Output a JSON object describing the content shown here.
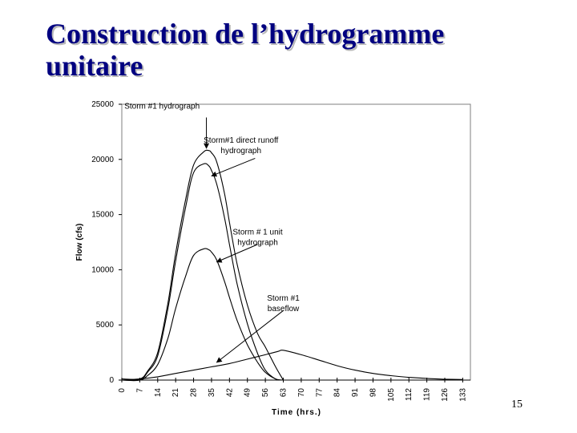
{
  "slide": {
    "title_line1": "Construction de l’hydrogramme",
    "title_line2": "unitaire",
    "page_number": "15"
  },
  "chart_data": {
    "type": "line",
    "title": "",
    "xlabel": "Time (hrs.)",
    "ylabel": "Flow (cfs)",
    "xlim": [
      0,
      136
    ],
    "ylim": [
      0,
      25000
    ],
    "x_ticks": [
      0,
      7,
      14,
      21,
      28,
      35,
      42,
      49,
      56,
      63,
      70,
      77,
      84,
      91,
      98,
      105,
      112,
      119,
      126,
      133
    ],
    "y_ticks": [
      0,
      5000,
      10000,
      15000,
      20000,
      25000
    ],
    "grid": false,
    "series": [
      {
        "key": "storm_hydrograph",
        "x": [
          0,
          7,
          10,
          14,
          18,
          21,
          25,
          28,
          32,
          34,
          35,
          37,
          40,
          42,
          45,
          49,
          53,
          56,
          60,
          63
        ],
        "y": [
          100,
          100,
          800,
          2500,
          7000,
          11500,
          16500,
          19500,
          20700,
          20800,
          20600,
          19800,
          17000,
          14300,
          10500,
          6800,
          4200,
          3000,
          1200,
          0
        ]
      },
      {
        "key": "direct_runoff",
        "x": [
          0,
          7,
          10,
          14,
          18,
          21,
          25,
          28,
          32,
          34,
          35,
          37,
          40,
          42,
          45,
          49,
          53,
          56,
          60,
          63
        ],
        "y": [
          0,
          0,
          700,
          2200,
          6500,
          10800,
          15800,
          18800,
          19600,
          19400,
          19000,
          17800,
          14800,
          12300,
          8700,
          5100,
          2400,
          900,
          100,
          0
        ]
      },
      {
        "key": "unit_hydrograph",
        "x": [
          0,
          7,
          10,
          14,
          18,
          21,
          25,
          28,
          32,
          34,
          35,
          37,
          40,
          42,
          45,
          49,
          53,
          56,
          60,
          63
        ],
        "y": [
          0,
          0,
          400,
          1400,
          3800,
          6500,
          9500,
          11300,
          11900,
          11800,
          11600,
          10900,
          9000,
          7500,
          5400,
          3200,
          1600,
          700,
          100,
          0
        ]
      },
      {
        "key": "baseflow",
        "x": [
          0,
          7,
          14,
          21,
          28,
          35,
          42,
          49,
          56,
          61,
          63,
          70,
          77,
          84,
          91,
          98,
          105,
          112,
          119,
          126,
          133
        ],
        "y": [
          0,
          100,
          300,
          600,
          900,
          1200,
          1500,
          1900,
          2300,
          2600,
          2700,
          2300,
          1800,
          1300,
          900,
          600,
          400,
          250,
          150,
          80,
          50
        ]
      }
    ],
    "annotations": [
      {
        "lines": [
          "Storm #1 hydrograph"
        ],
        "x": 1,
        "y": 24600,
        "target": [
          33,
          21000
        ],
        "tx": [
          33,
          23800
        ]
      },
      {
        "lines": [
          "Storm#1 direct runoff",
          "hydrograph"
        ],
        "x": 46.5,
        "y": 21500,
        "target": [
          35,
          18500
        ],
        "tx": [
          52,
          20100
        ]
      },
      {
        "lines": [
          "Storm # 1 unit",
          "hydrograph"
        ],
        "x": 53,
        "y": 13200,
        "target": [
          37,
          10700
        ],
        "tx": [
          53,
          12300
        ]
      },
      {
        "lines": [
          "Storm #1",
          "baseflow"
        ],
        "x": 63,
        "y": 7200,
        "target": [
          37,
          1600
        ],
        "tx": [
          63,
          6300
        ]
      }
    ]
  }
}
